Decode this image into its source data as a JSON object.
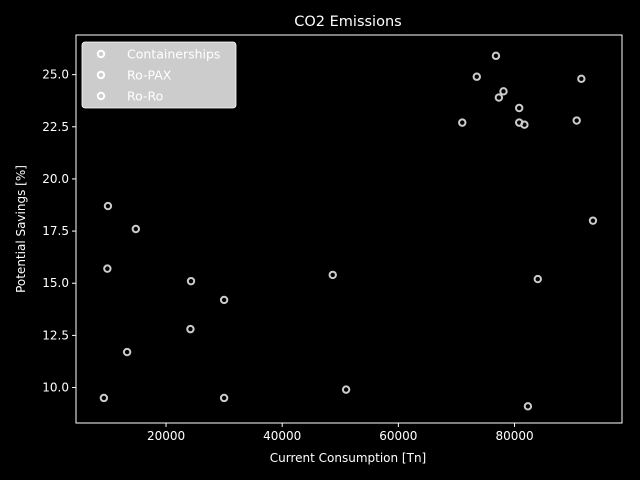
{
  "chart_data": {
    "type": "scatter",
    "title": "CO2 Emissions",
    "xlabel": "Current Consumption [Tn]",
    "ylabel": "Potential Savings [%]",
    "xlim": [
      4500,
      98500
    ],
    "ylim": [
      8.3,
      26.9
    ],
    "xticks": [
      20000,
      40000,
      60000,
      80000
    ],
    "xtick_labels": [
      "20000",
      "40000",
      "60000",
      "80000"
    ],
    "yticks": [
      10.0,
      12.5,
      15.0,
      17.5,
      20.0,
      22.5,
      25.0
    ],
    "ytick_labels": [
      "10.0",
      "12.5",
      "15.0",
      "17.5",
      "20.0",
      "22.5",
      "25.0"
    ],
    "grid": false,
    "legend_position": "top-left",
    "colors": {
      "background": "#000000",
      "axes": "#ffffff",
      "marker": "#cccccc",
      "legend_bg": "#cccccc"
    },
    "series": [
      {
        "name": "Containerships",
        "x": [
          76800,
          73500,
          77300,
          78100,
          91500,
          80800,
          71000,
          80800,
          81700,
          90700
        ],
        "y": [
          25.9,
          24.9,
          23.9,
          24.2,
          24.8,
          23.4,
          22.7,
          22.7,
          22.6,
          22.8
        ]
      },
      {
        "name": "Ro-PAX",
        "x": [
          10000,
          14800,
          9900,
          24300,
          30000,
          24200,
          13300,
          48700,
          84000,
          93500
        ],
        "y": [
          18.7,
          17.6,
          15.7,
          15.1,
          14.2,
          12.8,
          11.7,
          15.4,
          15.2,
          18.0
        ]
      },
      {
        "name": "Ro-Ro",
        "x": [
          9300,
          30000,
          51000,
          82300
        ],
        "y": [
          9.5,
          9.5,
          9.9,
          9.1
        ]
      }
    ]
  }
}
